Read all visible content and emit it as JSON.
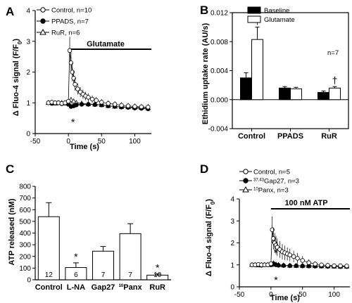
{
  "chart_data": [
    {
      "panel": "A",
      "type": "line",
      "ylabel": "Δ Fluo-4 signal (F/F0)",
      "xlabel": "Time (s)",
      "xlim": [
        -50,
        125
      ],
      "ylim": [
        0,
        4
      ],
      "xticks": [
        -50,
        0,
        50,
        100
      ],
      "yticks": [
        0,
        1,
        2,
        3,
        4
      ],
      "bar_annotation": {
        "label": "Glutamate",
        "x_start": 0,
        "x_end": 125
      },
      "significance": [
        {
          "label": "*",
          "x": 7,
          "y": 0.4
        }
      ],
      "series": [
        {
          "name": "Control, n=10",
          "marker": "open-circle",
          "x": [
            -30,
            -25,
            -20,
            -15,
            -10,
            -5,
            0,
            2,
            4,
            6,
            8,
            10,
            14,
            18,
            22,
            26,
            30,
            36,
            42,
            50,
            60,
            70,
            80,
            90,
            100,
            110,
            120
          ],
          "y": [
            1.0,
            1.02,
            1.0,
            1.0,
            0.98,
            1.0,
            1.05,
            2.7,
            2.3,
            2.0,
            1.8,
            1.6,
            1.45,
            1.35,
            1.28,
            1.22,
            1.18,
            1.12,
            1.08,
            1.02,
            0.98,
            0.95,
            0.92,
            0.9,
            0.88,
            0.87,
            0.86
          ],
          "err": [
            0.05,
            0.05,
            0.05,
            0.05,
            0.05,
            0.05,
            0.1,
            0.45,
            0.35,
            0.3,
            0.25,
            0.2,
            0.18,
            0.16,
            0.15,
            0.14,
            0.13,
            0.12,
            0.11,
            0.1,
            0.1,
            0.1,
            0.1,
            0.1,
            0.1,
            0.1,
            0.1
          ]
        },
        {
          "name": "PPADS, n=7",
          "marker": "filled-circle",
          "x": [
            -30,
            -25,
            -20,
            -15,
            -10,
            -5,
            0,
            4,
            8,
            12,
            20,
            30,
            40,
            50,
            60,
            70,
            80,
            90,
            100,
            110,
            120
          ],
          "y": [
            1.0,
            0.98,
            1.0,
            1.0,
            0.97,
            1.0,
            0.95,
            0.88,
            0.9,
            0.93,
            0.95,
            0.95,
            0.94,
            0.93,
            0.9,
            0.88,
            0.86,
            0.85,
            0.83,
            0.82,
            0.8
          ],
          "err": [
            0.05,
            0.05,
            0.05,
            0.05,
            0.05,
            0.05,
            0.05,
            0.06,
            0.06,
            0.06,
            0.06,
            0.06,
            0.06,
            0.06,
            0.06,
            0.06,
            0.06,
            0.06,
            0.06,
            0.06,
            0.06
          ]
        },
        {
          "name": "RuR, n=6",
          "marker": "open-triangle",
          "x": [
            -30,
            -25,
            -20,
            -15,
            -10,
            -5,
            0,
            4,
            8,
            12,
            20,
            30,
            40,
            50,
            60,
            70,
            80,
            90,
            100,
            110,
            120
          ],
          "y": [
            1.0,
            1.0,
            0.98,
            1.0,
            1.0,
            0.98,
            1.0,
            1.1,
            1.05,
            1.0,
            0.98,
            0.96,
            0.95,
            0.93,
            0.9,
            0.88,
            0.87,
            0.86,
            0.85,
            0.84,
            0.83
          ],
          "err": [
            0.05,
            0.05,
            0.05,
            0.05,
            0.05,
            0.05,
            0.06,
            0.08,
            0.07,
            0.06,
            0.06,
            0.06,
            0.06,
            0.06,
            0.06,
            0.06,
            0.06,
            0.06,
            0.06,
            0.06,
            0.06
          ]
        }
      ]
    },
    {
      "panel": "B",
      "type": "bar",
      "ylabel": "Ethidium uptake rate (AU/s)",
      "categories": [
        "Control",
        "PPADS",
        "RuR"
      ],
      "ylim": [
        -0.004,
        0.012
      ],
      "yticks": [
        -0.004,
        0.0,
        0.004,
        0.008,
        0.012
      ],
      "ytick_labels": [
        "-0.004",
        "0.000",
        "0.004",
        "0.008",
        "0.012"
      ],
      "note": "n=7",
      "series": [
        {
          "name": "Baseline",
          "color": "#000000",
          "values": [
            0.003,
            0.0016,
            0.001
          ],
          "err": [
            0.0007,
            0.0002,
            0.0002
          ]
        },
        {
          "name": "Glutamate",
          "color": "#ffffff",
          "values": [
            0.0083,
            0.0015,
            0.0016
          ],
          "err": [
            0.0017,
            0.0002,
            0.0002
          ]
        }
      ],
      "significance": [
        {
          "label": "†",
          "category": 0,
          "series": 1
        },
        {
          "label": "†",
          "category": 2,
          "series": 1
        }
      ]
    },
    {
      "panel": "C",
      "type": "bar",
      "ylabel": "ATP released (nM)",
      "categories": [
        "Control",
        "L-NA",
        "Gap27",
        "10Panx",
        "RuR"
      ],
      "category_labels": [
        {
          "main": "Control",
          "sup": ""
        },
        {
          "main": "L-NA",
          "sup": ""
        },
        {
          "main": "Gap27",
          "sup": ""
        },
        {
          "main": "Panx",
          "sup": "10"
        },
        {
          "main": "RuR",
          "sup": ""
        }
      ],
      "ylim": [
        0,
        800
      ],
      "yticks": [
        0,
        100,
        200,
        300,
        400,
        500,
        600,
        700,
        800
      ],
      "values": [
        540,
        105,
        245,
        395,
        40
      ],
      "err": [
        120,
        40,
        40,
        85,
        10
      ],
      "n_labels": [
        "12",
        "6",
        "7",
        "7",
        "10"
      ],
      "significance": [
        {
          "label": "*",
          "category": 1
        },
        {
          "label": "*",
          "category": 4
        }
      ]
    },
    {
      "panel": "D",
      "type": "line",
      "ylabel": "Δ Fluo-4 signal (F/F0)",
      "xlabel": "Time (s)",
      "xlim": [
        -50,
        125
      ],
      "ylim": [
        0,
        4
      ],
      "xticks": [
        -50,
        0,
        50,
        100
      ],
      "yticks": [
        0,
        1,
        2,
        3,
        4
      ],
      "bar_annotation": {
        "label": "100 nM ATP",
        "x_start": 0,
        "x_end": 125
      },
      "significance": [
        {
          "label": "*",
          "x": 8,
          "y": 1.6
        },
        {
          "label": "*",
          "x": 8,
          "y": 0.35
        }
      ],
      "series": [
        {
          "name": "Control, n=5",
          "marker": "open-circle",
          "legend_sup": "",
          "x": [
            -30,
            -25,
            -20,
            -15,
            -10,
            -5,
            0,
            2,
            4,
            6,
            8,
            10,
            14,
            18,
            22,
            26,
            30,
            36,
            42,
            50,
            60,
            70,
            80,
            90,
            100,
            110,
            120
          ],
          "y": [
            1.0,
            1.0,
            1.02,
            1.0,
            1.0,
            1.0,
            1.05,
            2.6,
            2.2,
            2.0,
            1.9,
            1.8,
            1.7,
            1.6,
            1.55,
            1.5,
            1.45,
            1.38,
            1.3,
            1.2,
            1.1,
            1.04,
            1.0,
            0.98,
            0.96,
            0.96,
            0.95
          ],
          "err": [
            0.05,
            0.05,
            0.05,
            0.05,
            0.05,
            0.05,
            0.1,
            0.6,
            0.5,
            0.45,
            0.42,
            0.4,
            0.38,
            0.35,
            0.33,
            0.3,
            0.28,
            0.26,
            0.24,
            0.2,
            0.15,
            0.12,
            0.1,
            0.08,
            0.07,
            0.07,
            0.07
          ]
        },
        {
          "name": "Gap27, n=3",
          "marker": "filled-circle",
          "legend_sup": "37,43",
          "x": [
            -30,
            -25,
            -20,
            -15,
            -10,
            -5,
            0,
            4,
            8,
            12,
            20,
            30,
            40,
            50,
            60,
            70,
            80,
            90,
            100,
            110,
            120
          ],
          "y": [
            1.0,
            1.0,
            1.0,
            0.98,
            1.0,
            1.0,
            1.0,
            1.05,
            1.0,
            0.98,
            0.97,
            0.96,
            0.96,
            0.95,
            0.95,
            0.94,
            0.94,
            0.93,
            0.93,
            0.92,
            0.92
          ],
          "err": [
            0.05,
            0.05,
            0.05,
            0.05,
            0.05,
            0.05,
            0.05,
            0.08,
            0.06,
            0.06,
            0.06,
            0.06,
            0.06,
            0.06,
            0.06,
            0.06,
            0.06,
            0.06,
            0.06,
            0.06,
            0.06
          ]
        },
        {
          "name": "Panx, n=3",
          "marker": "open-triangle",
          "legend_sup": "10",
          "x": [
            -30,
            -25,
            -20,
            -15,
            -10,
            -5,
            0,
            4,
            8,
            12,
            20,
            30,
            40,
            50,
            60,
            70,
            80,
            90,
            100,
            110,
            120
          ],
          "y": [
            1.0,
            1.0,
            0.98,
            1.0,
            1.0,
            1.0,
            1.0,
            1.08,
            1.02,
            1.0,
            0.98,
            0.97,
            0.96,
            0.96,
            0.95,
            0.95,
            0.94,
            0.94,
            0.93,
            0.93,
            0.93
          ],
          "err": [
            0.05,
            0.05,
            0.05,
            0.05,
            0.05,
            0.05,
            0.05,
            0.08,
            0.06,
            0.06,
            0.06,
            0.06,
            0.06,
            0.06,
            0.06,
            0.06,
            0.06,
            0.06,
            0.06,
            0.06,
            0.06
          ]
        }
      ]
    }
  ]
}
